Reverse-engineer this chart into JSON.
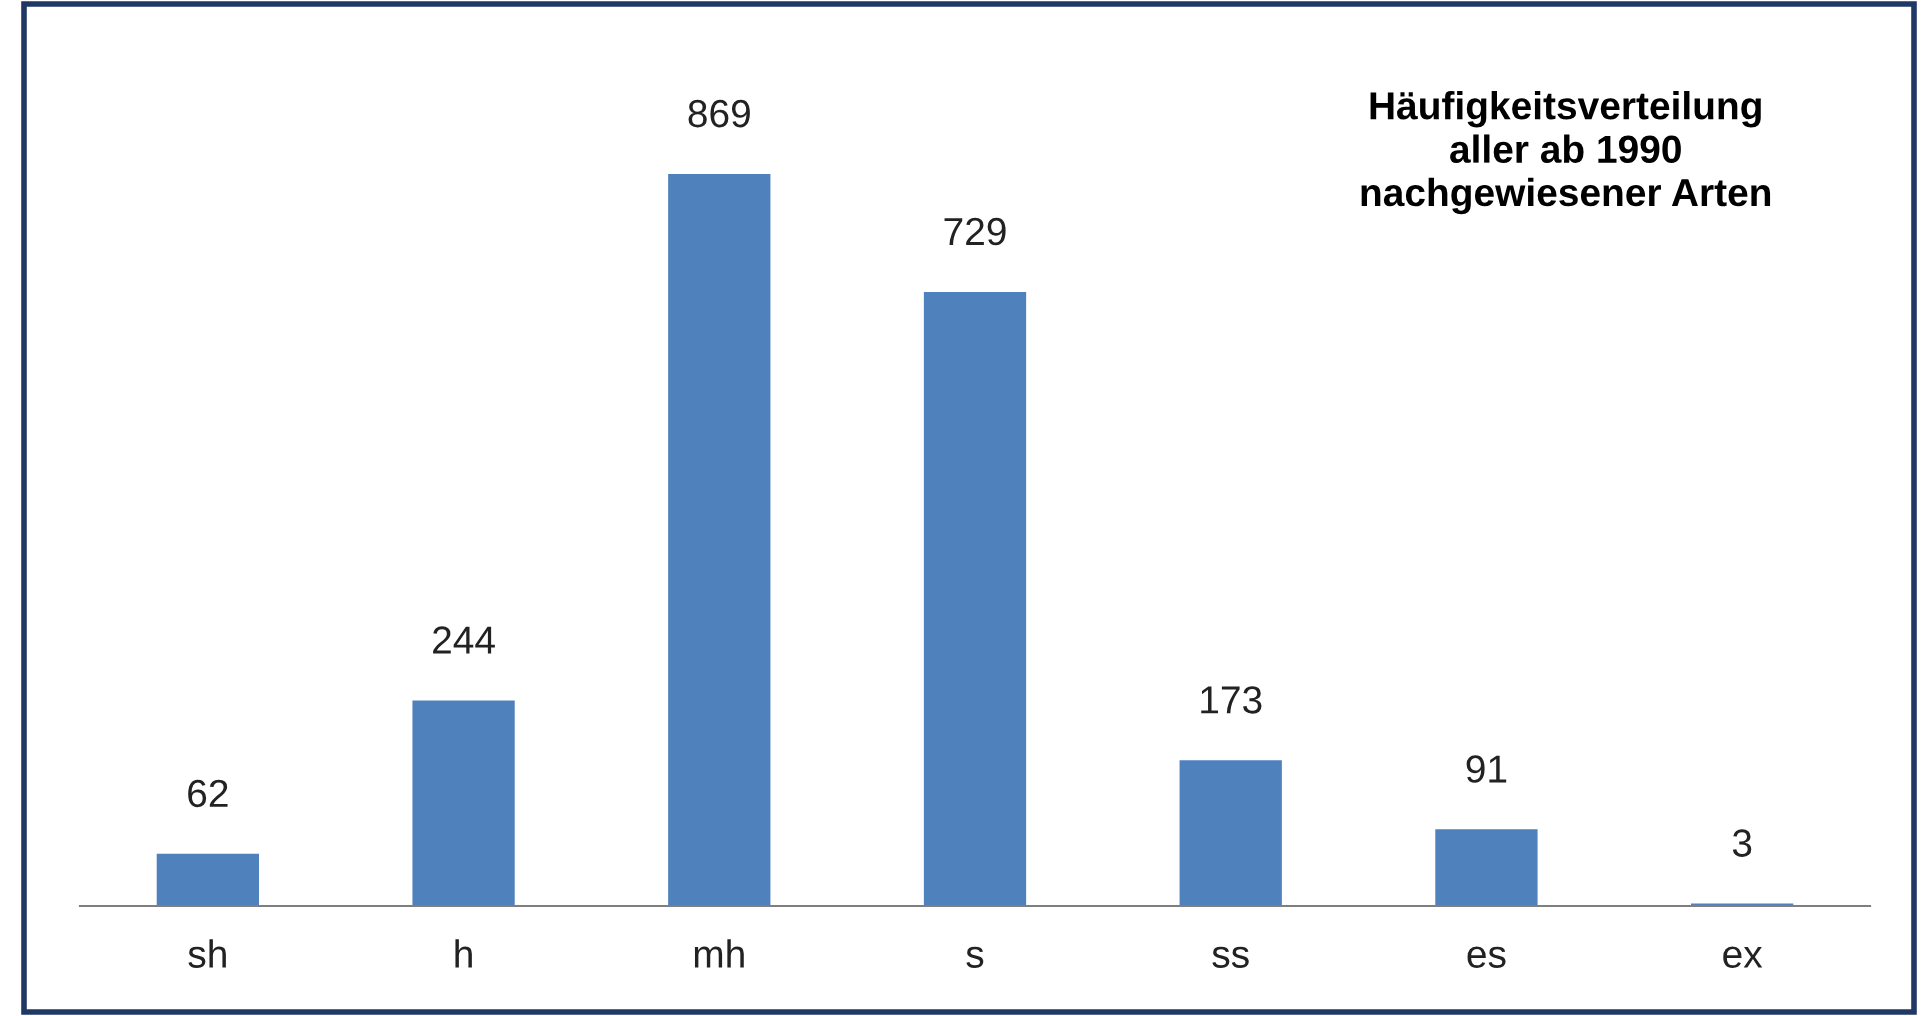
{
  "chart_data": {
    "type": "bar",
    "title": "Häufigkeitsverteilung\naller ab 1990\nnachgewiesener Arten",
    "categories": [
      "sh",
      "h",
      "mh",
      "s",
      "ss",
      "es",
      "ex"
    ],
    "values": [
      62,
      244,
      869,
      729,
      173,
      91,
      3
    ],
    "color": "#4f81bd",
    "data_labels": true,
    "grid": false,
    "legend": false
  }
}
